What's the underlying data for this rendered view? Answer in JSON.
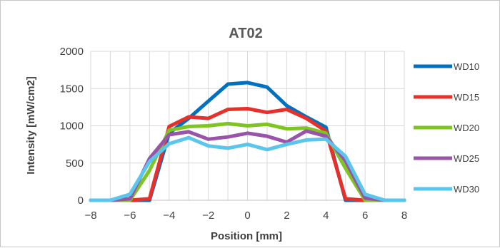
{
  "chart_data": {
    "type": "line",
    "title": "AT02",
    "xlabel": "Position [mm]",
    "ylabel": "Intensity  [mW/cm2]",
    "xlim": [
      -8,
      8
    ],
    "ylim": [
      0,
      2000
    ],
    "x_ticks": [
      -8,
      -6,
      -4,
      -2,
      0,
      2,
      4,
      6,
      8
    ],
    "y_ticks": [
      0,
      500,
      1000,
      1500,
      2000
    ],
    "x_tick_labels": [
      "−8",
      "−6",
      "−4",
      "−2",
      "0",
      "2",
      "4",
      "6",
      "8"
    ],
    "y_tick_labels": [
      "0",
      "500",
      "1000",
      "1500",
      "2000"
    ],
    "grid": true,
    "legend_position": "right",
    "x": [
      -8,
      -7,
      -6,
      -5,
      -4,
      -3,
      -2,
      -1,
      0,
      1,
      2,
      3,
      4,
      5,
      6,
      7,
      8
    ],
    "series": [
      {
        "name": "WD10",
        "color": "#0070c0",
        "values": [
          0,
          0,
          0,
          0,
          900,
          1100,
          1330,
          1560,
          1580,
          1520,
          1270,
          1120,
          980,
          0,
          0,
          0,
          0
        ]
      },
      {
        "name": "WD15",
        "color": "#e8302a",
        "values": [
          0,
          0,
          0,
          20,
          990,
          1120,
          1100,
          1220,
          1230,
          1180,
          1220,
          1100,
          930,
          20,
          0,
          0,
          0
        ]
      },
      {
        "name": "WD20",
        "color": "#7ec524",
        "values": [
          0,
          0,
          0,
          400,
          940,
          990,
          1000,
          1030,
          1000,
          1020,
          960,
          970,
          900,
          430,
          0,
          0,
          0
        ]
      },
      {
        "name": "WD25",
        "color": "#9953a8",
        "values": [
          0,
          0,
          20,
          560,
          880,
          920,
          820,
          850,
          900,
          860,
          780,
          930,
          860,
          530,
          30,
          0,
          0
        ]
      },
      {
        "name": "WD30",
        "color": "#5bc6ec",
        "values": [
          0,
          0,
          80,
          520,
          760,
          840,
          730,
          700,
          750,
          680,
          750,
          810,
          820,
          590,
          80,
          0,
          0
        ]
      }
    ]
  }
}
